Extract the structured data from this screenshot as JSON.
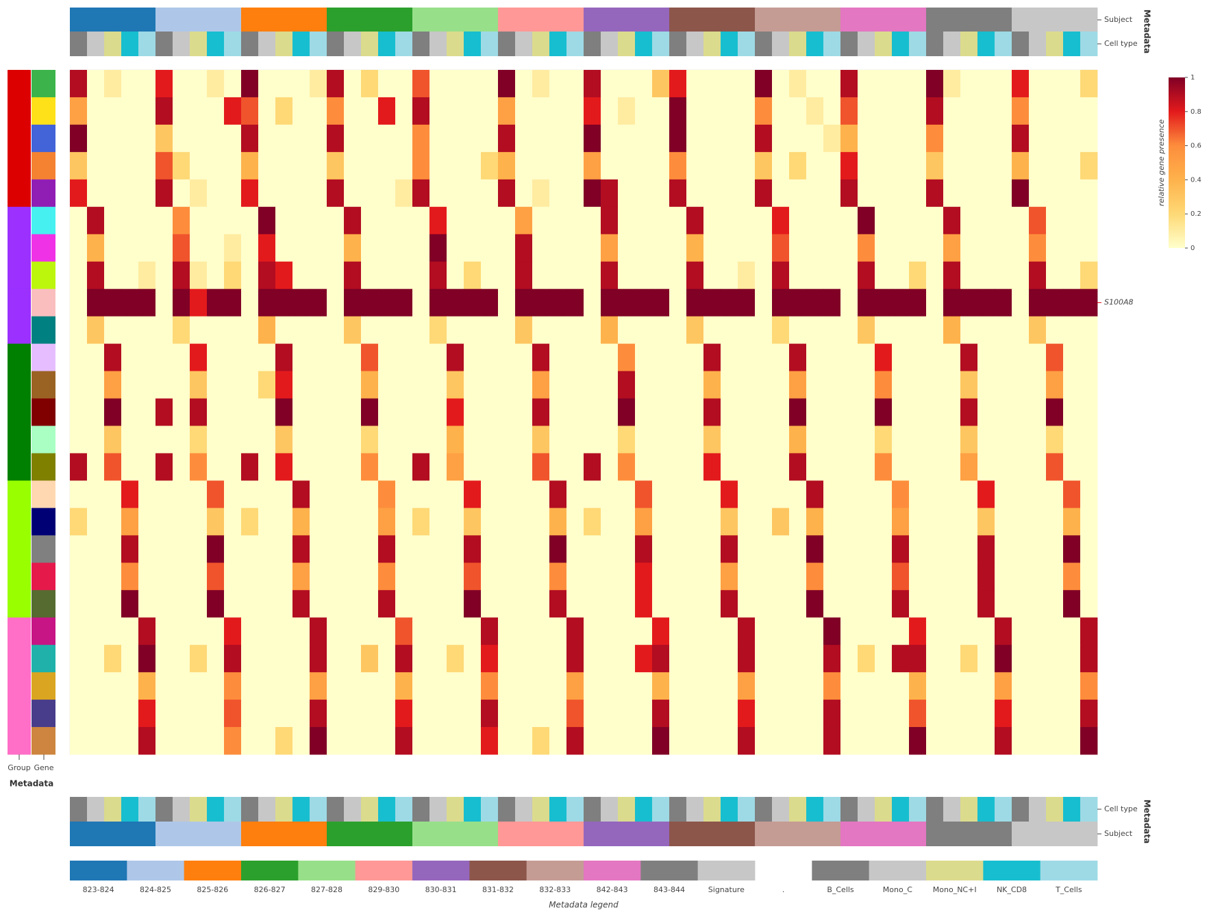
{
  "chart_data": {
    "type": "heatmap",
    "subjects": [
      "823-824",
      "824-825",
      "825-826",
      "826-827",
      "827-828",
      "829-830",
      "830-831",
      "831-832",
      "832-833",
      "842-843",
      "843-844",
      "Signature"
    ],
    "subject_colors": [
      "#1f77b4",
      "#aec7e8",
      "#ff7f0e",
      "#2ca02c",
      "#98df8a",
      "#ff9896",
      "#9467bd",
      "#8c564b",
      "#c49c94",
      "#e377c2",
      "#7f7f7f",
      "#c7c7c7"
    ],
    "cell_types": [
      "B_Cells",
      "Mono_C",
      "Mono_NC+I",
      "NK_CD8",
      "T_Cells"
    ],
    "cell_type_colors": [
      "#7f7f7f",
      "#c7c7c7",
      "#dbdb8d",
      "#17becf",
      "#9edae5"
    ],
    "legend_separator": ".",
    "legend_title": "Metadata legend",
    "labels": {
      "subject": "Subject",
      "cell_type": "Cell type",
      "metadata": "Metadata",
      "group": "Group",
      "gene": "Gene"
    },
    "rows": [
      null,
      null,
      null,
      null,
      null,
      null,
      null,
      null,
      "S100A8",
      null,
      null,
      null,
      null,
      null,
      null,
      null,
      null,
      null,
      null,
      null,
      null,
      null,
      null,
      null,
      null
    ],
    "row_label_color": "#e00000",
    "row_groups": [
      0,
      0,
      0,
      0,
      0,
      1,
      1,
      1,
      1,
      1,
      2,
      2,
      2,
      2,
      2,
      3,
      3,
      3,
      3,
      3,
      4,
      4,
      4,
      4,
      4
    ],
    "group_colors": [
      "#dd0000",
      "#9b30ff",
      "#008000",
      "#99ff00",
      "#ff6ec7"
    ],
    "gene_colors": [
      "#3cb44b",
      "#ffe119",
      "#4363d8",
      "#f58231",
      "#911eb4",
      "#46f0f0",
      "#f032e6",
      "#bcf60c",
      "#fabebe",
      "#008080",
      "#e6beff",
      "#9a6324",
      "#800000",
      "#aaffc3",
      "#808000",
      "#ffd8b1",
      "#000075",
      "#808080",
      "#e6194b",
      "#556b2f",
      "#c71585",
      "#20b2aa",
      "#daa520",
      "#483d8b",
      "#cd853f"
    ],
    "z": [
      [
        0.9,
        0,
        0.1,
        0,
        0,
        0.8,
        0,
        0,
        0.1,
        0,
        1,
        0,
        0,
        0,
        0.1,
        0.9,
        0,
        0.2,
        0,
        0,
        0.7,
        0,
        0,
        0,
        0,
        1,
        0,
        0.1,
        0,
        0,
        0.9,
        0,
        0,
        0,
        0.3,
        0.8,
        0,
        0,
        0,
        0,
        1,
        0,
        0.1,
        0,
        0,
        0.9,
        0,
        0,
        0,
        0,
        1,
        0.1,
        0,
        0,
        0,
        0.8,
        0,
        0,
        0,
        0.2
      ],
      [
        0.5,
        0,
        0,
        0,
        0,
        0.9,
        0,
        0,
        0,
        0.8,
        0.7,
        0,
        0.2,
        0,
        0,
        0.6,
        0,
        0,
        0.8,
        0,
        0.9,
        0,
        0,
        0,
        0,
        0.5,
        0,
        0,
        0,
        0,
        0.8,
        0,
        0.1,
        0,
        0,
        1,
        0,
        0,
        0,
        0,
        0.6,
        0,
        0,
        0.1,
        0,
        0.7,
        0,
        0,
        0,
        0,
        0.9,
        0,
        0,
        0,
        0,
        0.6,
        0,
        0,
        0,
        0
      ],
      [
        1,
        0,
        0,
        0,
        0,
        0.3,
        0,
        0,
        0,
        0,
        0.9,
        0,
        0,
        0,
        0,
        0.9,
        0,
        0,
        0,
        0,
        0.6,
        0,
        0,
        0,
        0,
        0.9,
        0,
        0,
        0,
        0,
        1,
        0,
        0,
        0,
        0,
        1,
        0,
        0,
        0,
        0,
        0.9,
        0,
        0,
        0,
        0.1,
        0.4,
        0,
        0,
        0,
        0,
        0.6,
        0,
        0,
        0,
        0,
        0.9,
        0,
        0,
        0,
        0
      ],
      [
        0.3,
        0,
        0,
        0,
        0,
        0.7,
        0.2,
        0,
        0,
        0,
        0.4,
        0,
        0,
        0,
        0,
        0.3,
        0,
        0,
        0,
        0,
        0.6,
        0,
        0,
        0,
        0.2,
        0.4,
        0,
        0,
        0,
        0,
        0.5,
        0,
        0,
        0,
        0,
        0.6,
        0,
        0,
        0,
        0,
        0.3,
        0,
        0.2,
        0,
        0,
        0.8,
        0,
        0,
        0,
        0,
        0.3,
        0,
        0,
        0,
        0,
        0.4,
        0,
        0,
        0,
        0.2
      ],
      [
        0.8,
        0,
        0,
        0,
        0,
        0.9,
        0,
        0.1,
        0,
        0,
        0.8,
        0,
        0,
        0,
        0,
        0.9,
        0,
        0,
        0,
        0.1,
        0.9,
        0,
        0,
        0,
        0,
        0.9,
        0,
        0.1,
        0,
        0,
        1,
        0.9,
        0,
        0,
        0,
        0.9,
        0,
        0,
        0,
        0,
        0.9,
        0,
        0,
        0,
        0,
        0.9,
        0,
        0,
        0,
        0,
        0.9,
        0,
        0,
        0,
        0,
        1,
        0,
        0,
        0,
        0
      ],
      [
        0,
        0.9,
        0,
        0,
        0,
        0,
        0.6,
        0,
        0,
        0,
        0,
        1,
        0,
        0,
        0,
        0,
        0.9,
        0,
        0,
        0,
        0,
        0.8,
        0,
        0,
        0,
        0,
        0.5,
        0,
        0,
        0,
        0,
        0.9,
        0,
        0,
        0,
        0,
        0.9,
        0,
        0,
        0,
        0,
        0.8,
        0,
        0,
        0,
        0,
        1,
        0,
        0,
        0,
        0,
        0.9,
        0,
        0,
        0,
        0,
        0.7,
        0,
        0,
        0
      ],
      [
        0,
        0.4,
        0,
        0,
        0,
        0,
        0.7,
        0,
        0,
        0.1,
        0,
        0.8,
        0,
        0,
        0,
        0,
        0.4,
        0,
        0,
        0,
        0,
        1,
        0,
        0,
        0,
        0,
        0.9,
        0,
        0,
        0,
        0,
        0.5,
        0,
        0,
        0,
        0,
        0.4,
        0,
        0,
        0,
        0,
        0.7,
        0,
        0,
        0,
        0,
        0.6,
        0,
        0,
        0,
        0,
        0.5,
        0,
        0,
        0,
        0,
        0.6,
        0,
        0,
        0
      ],
      [
        0,
        0.9,
        0,
        0,
        0.1,
        0,
        0.9,
        0.1,
        0,
        0.2,
        0,
        0.9,
        0.8,
        0,
        0,
        0,
        0.9,
        0,
        0,
        0,
        0,
        0.9,
        0,
        0.2,
        0,
        0,
        0.9,
        0,
        0,
        0,
        0,
        0.9,
        0,
        0,
        0,
        0,
        0.9,
        0,
        0,
        0.1,
        0,
        0.9,
        0,
        0,
        0,
        0,
        0.9,
        0,
        0,
        0.2,
        0,
        0.9,
        0,
        0,
        0,
        0,
        0.9,
        0,
        0,
        0.2
      ],
      [
        0,
        1,
        1,
        1,
        1,
        0,
        1,
        0.8,
        1,
        1,
        0,
        1,
        1,
        1,
        1,
        0,
        1,
        1,
        1,
        1,
        0,
        1,
        1,
        1,
        1,
        0,
        1,
        1,
        1,
        1,
        0,
        1,
        1,
        1,
        1,
        0,
        1,
        1,
        1,
        1,
        0,
        1,
        1,
        1,
        1,
        0,
        1,
        1,
        1,
        1,
        0,
        1,
        1,
        1,
        1,
        0,
        1,
        1,
        1,
        1
      ],
      [
        0,
        0.3,
        0,
        0,
        0,
        0,
        0.2,
        0,
        0,
        0,
        0,
        0.4,
        0,
        0,
        0,
        0,
        0.3,
        0,
        0,
        0,
        0,
        0.2,
        0,
        0,
        0,
        0,
        0.3,
        0,
        0,
        0,
        0,
        0.4,
        0,
        0,
        0,
        0,
        0.3,
        0,
        0,
        0,
        0,
        0.2,
        0,
        0,
        0,
        0,
        0.3,
        0,
        0,
        0,
        0,
        0.4,
        0,
        0,
        0,
        0,
        0.3,
        0,
        0,
        0
      ],
      [
        0,
        0,
        0.9,
        0,
        0,
        0,
        0,
        0.8,
        0,
        0,
        0,
        0,
        0.9,
        0,
        0,
        0,
        0,
        0.7,
        0,
        0,
        0,
        0,
        0.9,
        0,
        0,
        0,
        0,
        0.9,
        0,
        0,
        0,
        0,
        0.6,
        0,
        0,
        0,
        0,
        0.9,
        0,
        0,
        0,
        0,
        0.9,
        0,
        0,
        0,
        0,
        0.8,
        0,
        0,
        0,
        0,
        0.9,
        0,
        0,
        0,
        0,
        0.7,
        0,
        0
      ],
      [
        0,
        0,
        0.5,
        0,
        0,
        0,
        0,
        0.3,
        0,
        0,
        0,
        0.2,
        0.8,
        0,
        0,
        0,
        0,
        0.4,
        0,
        0,
        0,
        0,
        0.3,
        0,
        0,
        0,
        0,
        0.5,
        0,
        0,
        0,
        0,
        0.9,
        0,
        0,
        0,
        0,
        0.4,
        0,
        0,
        0,
        0,
        0.5,
        0,
        0,
        0,
        0,
        0.6,
        0,
        0,
        0,
        0,
        0.3,
        0,
        0,
        0,
        0,
        0.5,
        0,
        0
      ],
      [
        0,
        0,
        1,
        0,
        0,
        0.9,
        0,
        0.9,
        0,
        0,
        0,
        0,
        1,
        0,
        0,
        0,
        0,
        1,
        0,
        0,
        0,
        0,
        0.8,
        0,
        0,
        0,
        0,
        0.9,
        0,
        0,
        0,
        0,
        1,
        0,
        0,
        0,
        0,
        0.9,
        0,
        0,
        0,
        0,
        1,
        0,
        0,
        0,
        0,
        1,
        0,
        0,
        0,
        0,
        0.9,
        0,
        0,
        0,
        0,
        1,
        0,
        0
      ],
      [
        0,
        0,
        0.3,
        0,
        0,
        0,
        0,
        0.2,
        0,
        0,
        0,
        0,
        0.3,
        0,
        0,
        0,
        0,
        0.2,
        0,
        0,
        0,
        0,
        0.4,
        0,
        0,
        0,
        0,
        0.3,
        0,
        0,
        0,
        0,
        0.2,
        0,
        0,
        0,
        0,
        0.3,
        0,
        0,
        0,
        0,
        0.4,
        0,
        0,
        0,
        0,
        0.2,
        0,
        0,
        0,
        0,
        0.3,
        0,
        0,
        0,
        0,
        0.2,
        0,
        0
      ],
      [
        0.9,
        0,
        0.7,
        0,
        0,
        0.9,
        0,
        0.6,
        0,
        0,
        0.9,
        0,
        0.8,
        0,
        0,
        0,
        0,
        0.6,
        0,
        0,
        0.9,
        0,
        0.5,
        0,
        0,
        0,
        0,
        0.7,
        0,
        0,
        0.9,
        0,
        0.6,
        0,
        0,
        0,
        0,
        0.8,
        0,
        0,
        0,
        0,
        0.9,
        0,
        0,
        0,
        0,
        0.6,
        0,
        0,
        0,
        0,
        0.5,
        0,
        0,
        0,
        0,
        0.7,
        0,
        0
      ],
      [
        0,
        0,
        0,
        0.8,
        0,
        0,
        0,
        0,
        0.7,
        0,
        0,
        0,
        0,
        0.9,
        0,
        0,
        0,
        0,
        0.6,
        0,
        0,
        0,
        0,
        0.8,
        0,
        0,
        0,
        0,
        0.9,
        0,
        0,
        0,
        0,
        0.7,
        0,
        0,
        0,
        0,
        0.8,
        0,
        0,
        0,
        0,
        0.9,
        0,
        0,
        0,
        0,
        0.6,
        0,
        0,
        0,
        0,
        0.8,
        0,
        0,
        0,
        0,
        0.7,
        0
      ],
      [
        0.2,
        0,
        0,
        0.5,
        0,
        0,
        0,
        0,
        0.3,
        0,
        0.2,
        0,
        0,
        0.4,
        0,
        0,
        0,
        0,
        0.5,
        0,
        0.2,
        0,
        0,
        0.3,
        0,
        0,
        0,
        0,
        0.4,
        0,
        0.2,
        0,
        0,
        0.5,
        0,
        0,
        0,
        0,
        0.3,
        0,
        0,
        0.3,
        0,
        0.4,
        0,
        0,
        0,
        0,
        0.5,
        0,
        0,
        0,
        0,
        0.3,
        0,
        0,
        0,
        0,
        0.4,
        0
      ],
      [
        0,
        0,
        0,
        0.9,
        0,
        0,
        0,
        0,
        1,
        0,
        0,
        0,
        0,
        0.9,
        0,
        0,
        0,
        0,
        0.9,
        0,
        0,
        0,
        0,
        0.9,
        0,
        0,
        0,
        0,
        1,
        0,
        0,
        0,
        0,
        0.9,
        0,
        0,
        0,
        0,
        0.9,
        0,
        0,
        0,
        0,
        1,
        0,
        0,
        0,
        0,
        0.9,
        0,
        0,
        0,
        0,
        0.9,
        0,
        0,
        0,
        0,
        1,
        0
      ],
      [
        0,
        0,
        0,
        0.6,
        0,
        0,
        0,
        0,
        0.7,
        0,
        0,
        0,
        0,
        0.5,
        0,
        0,
        0,
        0,
        0.6,
        0,
        0,
        0,
        0,
        0.7,
        0,
        0,
        0,
        0,
        0.6,
        0,
        0,
        0,
        0,
        0.8,
        0,
        0,
        0,
        0,
        0.5,
        0,
        0,
        0,
        0,
        0.6,
        0,
        0,
        0,
        0,
        0.7,
        0,
        0,
        0,
        0,
        0.9,
        0,
        0,
        0,
        0,
        0.6,
        0
      ],
      [
        0,
        0,
        0,
        1,
        0,
        0,
        0,
        0,
        1,
        0,
        0,
        0,
        0,
        0.9,
        0,
        0,
        0,
        0,
        0.9,
        0,
        0,
        0,
        0,
        1,
        0,
        0,
        0,
        0,
        0.9,
        0,
        0,
        0,
        0,
        0.8,
        0,
        0,
        0,
        0,
        0.9,
        0,
        0,
        0,
        0,
        1,
        0,
        0,
        0,
        0,
        0.9,
        0,
        0,
        0,
        0,
        0.9,
        0,
        0,
        0,
        0,
        1,
        0
      ],
      [
        0,
        0,
        0,
        0,
        0.9,
        0,
        0,
        0,
        0,
        0.8,
        0,
        0,
        0,
        0,
        0.9,
        0,
        0,
        0,
        0,
        0.7,
        0,
        0,
        0,
        0,
        0.9,
        0,
        0,
        0,
        0,
        0.9,
        0,
        0,
        0,
        0,
        0.8,
        0,
        0,
        0,
        0,
        0.9,
        0,
        0,
        0,
        0,
        1,
        0,
        0,
        0,
        0,
        0.8,
        0,
        0,
        0,
        0,
        0.9,
        0,
        0,
        0,
        0,
        0.9
      ],
      [
        0,
        0,
        0.2,
        0,
        1,
        0,
        0,
        0.2,
        0,
        0.9,
        0,
        0,
        0,
        0,
        0.9,
        0,
        0,
        0.3,
        0,
        0.9,
        0,
        0,
        0.2,
        0,
        0.8,
        0,
        0,
        0,
        0,
        0.9,
        0,
        0,
        0,
        0.8,
        0.9,
        0,
        0,
        0,
        0,
        0.9,
        0,
        0,
        0,
        0,
        0.9,
        0,
        0.2,
        0,
        0.9,
        0.9,
        0,
        0,
        0.2,
        0,
        1,
        0,
        0,
        0,
        0,
        0.9
      ],
      [
        0,
        0,
        0,
        0,
        0.4,
        0,
        0,
        0,
        0,
        0.6,
        0,
        0,
        0,
        0,
        0.5,
        0,
        0,
        0,
        0,
        0.4,
        0,
        0,
        0,
        0,
        0.6,
        0,
        0,
        0,
        0,
        0.5,
        0,
        0,
        0,
        0,
        0.4,
        0,
        0,
        0,
        0,
        0.5,
        0,
        0,
        0,
        0,
        0.6,
        0,
        0,
        0,
        0,
        0.4,
        0,
        0,
        0,
        0,
        0.5,
        0,
        0,
        0,
        0,
        0.6
      ],
      [
        0,
        0,
        0,
        0,
        0.8,
        0,
        0,
        0,
        0,
        0.7,
        0,
        0,
        0,
        0,
        0.9,
        0,
        0,
        0,
        0,
        0.8,
        0,
        0,
        0,
        0,
        0.9,
        0,
        0,
        0,
        0,
        0.7,
        0,
        0,
        0,
        0,
        0.9,
        0,
        0,
        0,
        0,
        0.8,
        0,
        0,
        0,
        0,
        0.9,
        0,
        0,
        0,
        0,
        0.7,
        0,
        0,
        0,
        0,
        0.8,
        0,
        0,
        0,
        0,
        0.9
      ],
      [
        0,
        0,
        0,
        0,
        0.9,
        0,
        0,
        0,
        0,
        0.6,
        0,
        0,
        0.2,
        0,
        1,
        0,
        0,
        0,
        0,
        0.9,
        0,
        0,
        0,
        0,
        0.8,
        0,
        0,
        0.2,
        0,
        0.9,
        0,
        0,
        0,
        0,
        1,
        0,
        0,
        0,
        0,
        0.9,
        0,
        0,
        0,
        0,
        0.9,
        0,
        0,
        0,
        0,
        1,
        0,
        0,
        0,
        0,
        0.9,
        0,
        0,
        0,
        0,
        1
      ]
    ],
    "zlim": [
      0,
      1
    ],
    "colorscale": [
      "#ffffcc",
      "#fed976",
      "#feb24c",
      "#fd8d3c",
      "#e31a1c",
      "#800026"
    ],
    "colorbar_title": "relative gene presence",
    "colorbar_ticks": [
      0,
      0.2,
      0.4,
      0.6,
      0.8,
      1
    ]
  }
}
